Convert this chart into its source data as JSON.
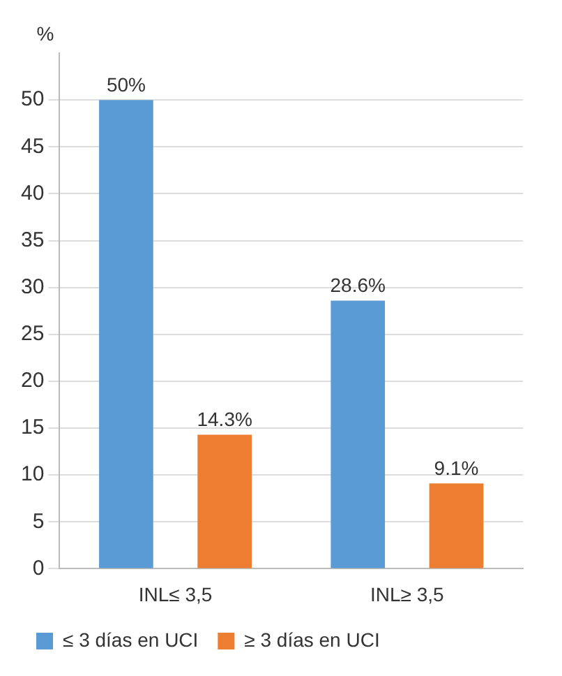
{
  "chart_data": {
    "type": "bar",
    "ylabel": "%",
    "categories": [
      "INL≤ 3,5",
      "INL≥ 3,5"
    ],
    "series": [
      {
        "name": "≤ 3 días en UCI",
        "color": "#5b9bd5",
        "values": [
          50,
          28.6
        ],
        "value_labels": [
          "50%",
          "28.6%"
        ]
      },
      {
        "name": "≥ 3 días en UCI",
        "color": "#ed7d31",
        "values": [
          14.3,
          9.1
        ],
        "value_labels": [
          "14.3%",
          "9.1%"
        ]
      }
    ],
    "ylim": [
      0,
      55
    ],
    "yticks": [
      0,
      5,
      10,
      15,
      20,
      25,
      30,
      35,
      40,
      45,
      50
    ],
    "grid": "y",
    "legend": "bottom left"
  }
}
